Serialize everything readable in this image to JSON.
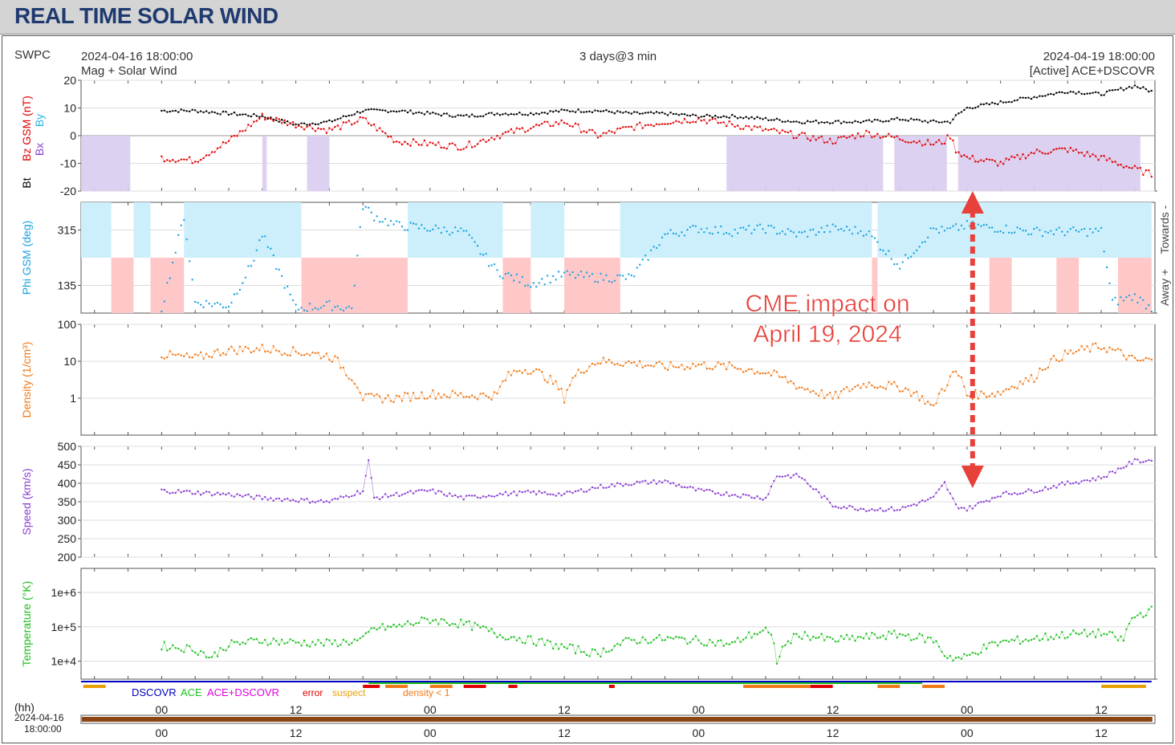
{
  "page": {
    "banner_title": "REAL TIME SOLAR WIND",
    "source": "SWPC",
    "start_time": "2024-04-16 18:00:00",
    "end_time": "2024-04-19 18:00:00",
    "span": "3 days@3 min",
    "product": "Mag + Solar Wind",
    "active": "[Active] ACE+DSCOVR",
    "hh_label": "(hh)",
    "bottom_date": "2024-04-16",
    "bottom_time": "18:00:00",
    "annotation_line1": "CME impact on",
    "annotation_line2": "April 19, 2024",
    "phi_side_away": "Away +",
    "phi_side_towards": "Towards -"
  },
  "colors": {
    "bt": "#000000",
    "bz": "#e00000",
    "by": "#29b6e8",
    "bx": "#8a3fd1",
    "phi": "#1aa3e0",
    "phi_towards": "#cdeffb",
    "phi_away": "#ffc8c8",
    "bz_south": "#d9ccf0",
    "density": "#f07a18",
    "speed": "#8a3fd1",
    "temperature": "#1fbf1f",
    "annotation": "#e8403a",
    "dscovr": "#0000c0",
    "ace": "#1fbf1f",
    "acedscovr": "#e000e0",
    "error": "#e00000",
    "suspect": "#e8a000",
    "density_lt1": "#f07a18"
  },
  "legend": {
    "dscovr": "DSCOVR",
    "ace": "ACE",
    "acedscovr": "ACE+DSCOVR",
    "error": "error",
    "suspect": "suspect",
    "density_lt1": "density < 1"
  },
  "chart_data": [
    {
      "type": "line",
      "ylabel_parts": [
        "Bt",
        "Bz GSM (nT)",
        "Bx",
        "By"
      ],
      "ylim": [
        -20,
        20
      ],
      "yticks": [
        "20",
        "10",
        "0",
        "-10",
        "-20"
      ],
      "x_hours": [
        0,
        3,
        6,
        9,
        12,
        15,
        18,
        21,
        24,
        27,
        30,
        33,
        36,
        39,
        42,
        45,
        48,
        51,
        54,
        57,
        60,
        63,
        66,
        69,
        70,
        70.5,
        71,
        72,
        75,
        78,
        81,
        84,
        87,
        88.5
      ],
      "series": [
        {
          "name": "Bt",
          "values": [
            9,
            9,
            8,
            7,
            4,
            5,
            9,
            9,
            8,
            7,
            8,
            8,
            9,
            9,
            8,
            8,
            7,
            7,
            6,
            5,
            5,
            5,
            6,
            5,
            5,
            5,
            7,
            10,
            12,
            14,
            16,
            15,
            18,
            16
          ]
        },
        {
          "name": "Bz GSM",
          "values": [
            -8,
            -9,
            -2,
            7,
            4,
            2,
            6,
            -2,
            -3,
            -4,
            0,
            3,
            5,
            0,
            3,
            5,
            6,
            4,
            2,
            0,
            -2,
            1,
            -1,
            -3,
            -2,
            0,
            -5,
            -8,
            -10,
            -6,
            -5,
            -8,
            -12,
            -14
          ]
        }
      ]
    },
    {
      "type": "scatter",
      "ylabel": "Phi GSM (deg)",
      "ylim": [
        45,
        405
      ],
      "yticks": [
        "315",
        "135"
      ],
      "x_hours": [
        0,
        2,
        3,
        6,
        8,
        9,
        12,
        15,
        17,
        18,
        19,
        21,
        24,
        27,
        30,
        33,
        36,
        39,
        42,
        45,
        48,
        51,
        54,
        57,
        60,
        63,
        66,
        69,
        70,
        72,
        75,
        78,
        81,
        84,
        85,
        87,
        88.5
      ],
      "values": [
        60,
        360,
        80,
        70,
        200,
        300,
        60,
        70,
        60,
        395,
        360,
        330,
        320,
        310,
        180,
        140,
        170,
        160,
        160,
        300,
        320,
        310,
        320,
        300,
        320,
        310,
        200,
        320,
        310,
        330,
        320,
        310,
        310,
        310,
        80,
        100,
        60
      ]
    },
    {
      "type": "line",
      "ylabel": "Density (1/cm³)",
      "yscale": "log",
      "ylim": [
        0.1,
        100
      ],
      "yticks": [
        "100",
        "10",
        "1"
      ],
      "x_hours": [
        0,
        3,
        6,
        9,
        12,
        15,
        16.5,
        18,
        21,
        24,
        27,
        30,
        31,
        32,
        33,
        36,
        39,
        42,
        45,
        48,
        51,
        54,
        57,
        60,
        63,
        66,
        69,
        70,
        71,
        72,
        75,
        78,
        81,
        84,
        87,
        88.5
      ],
      "values": [
        15,
        12,
        20,
        22,
        18,
        14,
        5,
        1,
        1,
        1.3,
        1.2,
        1.2,
        4,
        6,
        6,
        1,
        10,
        9,
        7,
        8,
        7,
        5,
        2,
        1,
        2.5,
        2,
        0.5,
        2,
        5,
        1.2,
        1.4,
        3.5,
        16,
        25,
        10,
        11
      ]
    },
    {
      "type": "line",
      "ylabel": "Speed (km/s)",
      "ylim": [
        200,
        500
      ],
      "yticks": [
        "500",
        "450",
        "400",
        "350",
        "300",
        "250",
        "200"
      ],
      "x_hours": [
        0,
        3,
        6,
        9,
        12,
        15,
        18,
        18.5,
        19,
        21,
        24,
        27,
        30,
        33,
        36,
        39,
        42,
        45,
        48,
        51,
        54,
        55,
        57,
        60,
        63,
        66,
        69,
        70,
        71,
        72,
        75,
        78,
        81,
        84,
        87,
        88.5
      ],
      "values": [
        380,
        375,
        370,
        360,
        355,
        350,
        380,
        460,
        360,
        370,
        380,
        360,
        370,
        375,
        370,
        390,
        400,
        405,
        380,
        370,
        360,
        420,
        420,
        340,
        330,
        330,
        360,
        400,
        340,
        330,
        370,
        380,
        400,
        415,
        460,
        462
      ]
    },
    {
      "type": "line",
      "ylabel": "Temperature (°K)",
      "yscale": "log",
      "ylim": [
        3000,
        5000000
      ],
      "yticks": [
        "1e+6",
        "1e+5",
        "1e+4"
      ],
      "x_hours": [
        0,
        3,
        4.5,
        6,
        9,
        12,
        15,
        18,
        19,
        21,
        24,
        27,
        30,
        33,
        36,
        39,
        42,
        45,
        48,
        51,
        54,
        55,
        57,
        60,
        63,
        66,
        69,
        70,
        71,
        72,
        75,
        78,
        81,
        84,
        86,
        87,
        88.5
      ],
      "values": [
        28000,
        22000,
        12000,
        30000,
        40000,
        35000,
        33000,
        40000,
        90000,
        100000,
        160000,
        120000,
        60000,
        40000,
        25000,
        16000,
        40000,
        45000,
        40000,
        30000,
        80000,
        10000,
        60000,
        40000,
        50000,
        60000,
        40000,
        15000,
        12000,
        13000,
        35000,
        45000,
        60000,
        65000,
        40000,
        200000,
        300000
      ]
    }
  ],
  "x_axis": {
    "range_hours": [
      -7.2,
      88.8
    ],
    "ticks_hours": [
      0,
      12,
      24,
      36,
      48,
      60,
      72,
      84
    ],
    "tick_labels": [
      "00",
      "12",
      "00",
      "12",
      "00",
      "12",
      "00",
      "12"
    ]
  }
}
